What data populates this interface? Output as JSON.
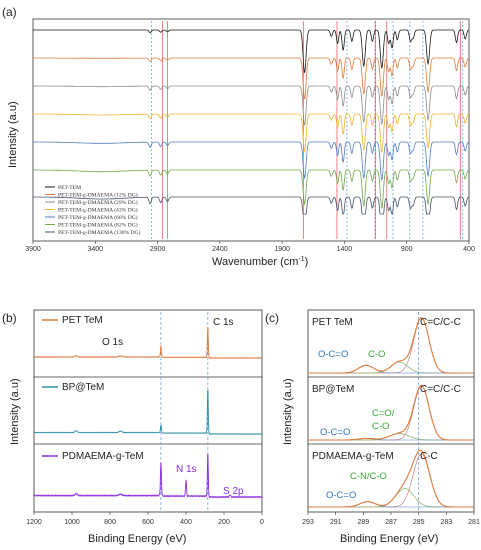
{
  "panels": {
    "a": {
      "label": "(a)",
      "xlabel": "Wavenumber (cm",
      "xlabel_sup": "-1",
      "xlabel_end": ")",
      "ylabel": "Intensity (a.u)",
      "ticks": [
        "3900",
        "3400",
        "2900",
        "2400",
        "1900",
        "1400",
        "900",
        "400"
      ]
    },
    "b": {
      "label": "(b)",
      "xlabel": "Binding Energy (eV)",
      "ylabel": "Intensity (a.u)",
      "ticks": [
        "1200",
        "1000",
        "800",
        "600",
        "400",
        "200",
        "0"
      ]
    },
    "c": {
      "label": "(c)",
      "xlabel": "Binding Energy (eV)",
      "ylabel": "Intensity (a.u)",
      "ticks": [
        "293",
        "291",
        "289",
        "287",
        "285",
        "283",
        "281"
      ]
    }
  },
  "colors": {
    "black": "#1a1a1a",
    "orange": "#e07a3a",
    "gray": "#8c8c8c",
    "gold": "#f0b429",
    "blue": "#4f7ec4",
    "green": "#70a849",
    "navy": "#44546a",
    "teal": "#2a8fa6",
    "purple": "#8a2be2",
    "lineRed": "#e05050",
    "lineBlue": "#6a8fd8",
    "annBlue": "#2e75b6",
    "annGreen": "#37a637"
  },
  "chart_data": [
    {
      "panel": "a",
      "type": "line",
      "xlim": [
        3900,
        400
      ],
      "x_reversed": true,
      "series": [
        {
          "name": "PET-TEM",
          "color": "#1a1a1a"
        },
        {
          "name": "PET-TEM-g-DMAEMA (12% DG)",
          "color": "#e07a3a"
        },
        {
          "name": "PET-TEM-g-DMAEMA (29% DG)",
          "color": "#8c8c8c"
        },
        {
          "name": "PET-TEM-g-DMAEMA (43% DG)",
          "color": "#f0b429"
        },
        {
          "name": "PET-TEM-g-DMAEMA (66% DG)",
          "color": "#4f7ec4"
        },
        {
          "name": "PET-TEM-g-DMAEMA (82% DG)",
          "color": "#70a849"
        },
        {
          "name": "PET-TEM-g-DMAEMA (130% DG)",
          "color": "#44546a"
        }
      ],
      "peaks": [
        {
          "x": 2960,
          "depth": 6
        },
        {
          "x": 2875,
          "depth": 5
        },
        {
          "x": 2820,
          "depth": 4
        },
        {
          "x": 1720,
          "depth": 95
        },
        {
          "x": 1505,
          "depth": 14
        },
        {
          "x": 1455,
          "depth": 30
        },
        {
          "x": 1410,
          "depth": 45
        },
        {
          "x": 1340,
          "depth": 25
        },
        {
          "x": 1245,
          "depth": 80
        },
        {
          "x": 1175,
          "depth": 25
        },
        {
          "x": 1100,
          "depth": 85
        },
        {
          "x": 1045,
          "depth": 30
        },
        {
          "x": 1018,
          "depth": 40
        },
        {
          "x": 975,
          "depth": 22
        },
        {
          "x": 870,
          "depth": 25
        },
        {
          "x": 848,
          "depth": 18
        },
        {
          "x": 728,
          "depth": 75
        },
        {
          "x": 500,
          "depth": 28
        },
        {
          "x": 430,
          "depth": 20
        }
      ],
      "markers_red": [
        2860,
        2820,
        1730,
        1460,
        1150,
        1060,
        470
      ],
      "markers_blue": [
        2950,
        1380,
        1155,
        1010,
        875,
        770,
        450
      ]
    },
    {
      "panel": "b",
      "type": "line",
      "xlim": [
        1200,
        0
      ],
      "x_reversed": true,
      "series": [
        {
          "name": "PET TeM",
          "color": "#e07a3a"
        },
        {
          "name": "BP@TeM",
          "color": "#2a8fa6"
        },
        {
          "name": "PDMAEMA-g-TeM",
          "color": "#8a2be2"
        }
      ],
      "peaks": [
        {
          "label": "O 1s",
          "x": 532
        },
        {
          "label": "C 1s",
          "x": 285
        },
        {
          "label": "N 1s",
          "x": 400
        },
        {
          "label": "S 2p",
          "x": 168
        }
      ],
      "markers_blue": [
        532,
        285
      ]
    },
    {
      "panel": "c",
      "type": "line",
      "xlim": [
        293,
        281
      ],
      "x_reversed": true,
      "series": [
        {
          "name": "PET TeM",
          "color": "#e07a3a"
        },
        {
          "name": "BP@TeM",
          "color": "#e07a3a"
        },
        {
          "name": "PDMAEMA-g-TeM",
          "color": "#e07a3a"
        }
      ],
      "components": [
        {
          "label": "C=C/C-C",
          "x": 284.8
        },
        {
          "label": "C-O",
          "x": 286.4
        },
        {
          "label": "O-C=O",
          "x": 288.8
        },
        {
          "label": "C=O/",
          "x": 286.4
        },
        {
          "label": "C-O",
          "x": 286.4
        },
        {
          "label": "C-C",
          "x": 284.8
        },
        {
          "label": "C-N/C-O",
          "x": 286.0
        },
        {
          "label": "O-C=O",
          "x": 288.8
        }
      ],
      "markers_blue": [
        285
      ]
    }
  ]
}
